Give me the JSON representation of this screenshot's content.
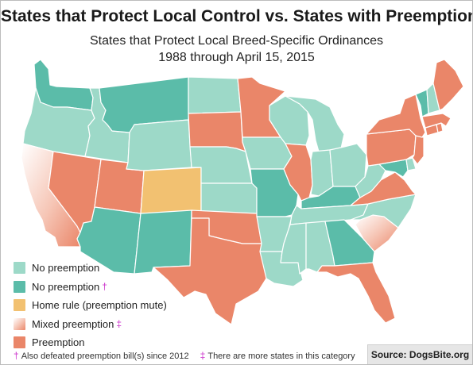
{
  "title": "States that Protect Local Control vs. States with Preemption Laws",
  "subtitle_line1": "States that Protect Local Breed-Specific Ordinances",
  "subtitle_line2": "1988 through April 15, 2015",
  "colors": {
    "no_preemption": "#9dd9c8",
    "no_preemption_defeated": "#5bbca9",
    "home_rule": "#f2c171",
    "mixed": "#f6c6b6",
    "preemption": "#ea8669"
  },
  "legend": [
    {
      "key": "no_preemption",
      "label": "No preemption",
      "mark": ""
    },
    {
      "key": "no_preemption_defeated",
      "label": "No preemption",
      "mark": "†"
    },
    {
      "key": "home_rule",
      "label": "Home rule (preemption mute)",
      "mark": ""
    },
    {
      "key": "mixed",
      "label": "Mixed preemption",
      "mark": "‡"
    },
    {
      "key": "preemption",
      "label": "Preemption",
      "mark": ""
    }
  ],
  "footnote": {
    "dagger": "†",
    "dagger_text": "Also defeated preemption bill(s) since 2012",
    "ddagger": "‡",
    "ddagger_text": "There are more states in this category"
  },
  "source": "Source: DogsBite.org",
  "states": [
    {
      "name": "Washington",
      "category": "no_preemption_defeated"
    },
    {
      "name": "Oregon",
      "category": "no_preemption"
    },
    {
      "name": "California",
      "category": "mixed"
    },
    {
      "name": "Idaho",
      "category": "no_preemption"
    },
    {
      "name": "Nevada",
      "category": "preemption"
    },
    {
      "name": "Utah",
      "category": "preemption"
    },
    {
      "name": "Arizona",
      "category": "no_preemption_defeated"
    },
    {
      "name": "Montana",
      "category": "no_preemption_defeated"
    },
    {
      "name": "Wyoming",
      "category": "no_preemption"
    },
    {
      "name": "Colorado",
      "category": "home_rule"
    },
    {
      "name": "New Mexico",
      "category": "no_preemption_defeated"
    },
    {
      "name": "North Dakota",
      "category": "no_preemption"
    },
    {
      "name": "South Dakota",
      "category": "preemption"
    },
    {
      "name": "Nebraska",
      "category": "no_preemption"
    },
    {
      "name": "Kansas",
      "category": "no_preemption"
    },
    {
      "name": "Oklahoma",
      "category": "preemption"
    },
    {
      "name": "Texas",
      "category": "preemption"
    },
    {
      "name": "Minnesota",
      "category": "preemption"
    },
    {
      "name": "Iowa",
      "category": "no_preemption"
    },
    {
      "name": "Missouri",
      "category": "no_preemption_defeated"
    },
    {
      "name": "Arkansas",
      "category": "no_preemption"
    },
    {
      "name": "Louisiana",
      "category": "no_preemption"
    },
    {
      "name": "Wisconsin",
      "category": "no_preemption"
    },
    {
      "name": "Illinois",
      "category": "preemption"
    },
    {
      "name": "Michigan",
      "category": "no_preemption"
    },
    {
      "name": "Indiana",
      "category": "no_preemption"
    },
    {
      "name": "Ohio",
      "category": "no_preemption"
    },
    {
      "name": "Kentucky",
      "category": "no_preemption_defeated"
    },
    {
      "name": "Tennessee",
      "category": "no_preemption"
    },
    {
      "name": "Mississippi",
      "category": "no_preemption"
    },
    {
      "name": "Alabama",
      "category": "no_preemption"
    },
    {
      "name": "Georgia",
      "category": "no_preemption_defeated"
    },
    {
      "name": "Florida",
      "category": "preemption"
    },
    {
      "name": "South Carolina",
      "category": "mixed"
    },
    {
      "name": "North Carolina",
      "category": "no_preemption"
    },
    {
      "name": "Virginia",
      "category": "preemption"
    },
    {
      "name": "West Virginia",
      "category": "no_preemption"
    },
    {
      "name": "Maryland",
      "category": "no_preemption_defeated"
    },
    {
      "name": "Delaware",
      "category": "no_preemption"
    },
    {
      "name": "Pennsylvania",
      "category": "preemption"
    },
    {
      "name": "New Jersey",
      "category": "preemption"
    },
    {
      "name": "New York",
      "category": "preemption"
    },
    {
      "name": "Connecticut",
      "category": "preemption"
    },
    {
      "name": "Rhode Island",
      "category": "preemption"
    },
    {
      "name": "Massachusetts",
      "category": "preemption"
    },
    {
      "name": "Vermont",
      "category": "no_preemption_defeated"
    },
    {
      "name": "New Hampshire",
      "category": "no_preemption"
    },
    {
      "name": "Maine",
      "category": "preemption"
    }
  ]
}
